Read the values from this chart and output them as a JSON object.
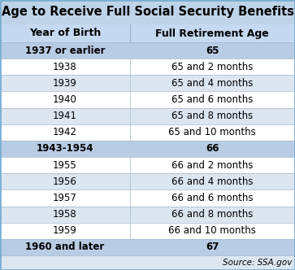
{
  "title": "Age to Receive Full Social Security Benefits",
  "col1_header": "Year of Birth",
  "col2_header": "Full Retirement Age",
  "rows": [
    [
      "1937 or earlier",
      "65"
    ],
    [
      "1938",
      "65 and 2 months"
    ],
    [
      "1939",
      "65 and 4 months"
    ],
    [
      "1940",
      "65 and 6 months"
    ],
    [
      "1941",
      "65 and 8 months"
    ],
    [
      "1942",
      "65 and 10 months"
    ],
    [
      "1943-1954",
      "66"
    ],
    [
      "1955",
      "66 and 2 months"
    ],
    [
      "1956",
      "66 and 4 months"
    ],
    [
      "1957",
      "66 and 6 months"
    ],
    [
      "1958",
      "66 and 8 months"
    ],
    [
      "1959",
      "66 and 10 months"
    ],
    [
      "1960 and later",
      "67"
    ]
  ],
  "source_text": "Source: SSA.gov",
  "title_fontsize": 10.5,
  "header_fontsize": 9,
  "cell_fontsize": 8.5,
  "source_fontsize": 7.5,
  "title_bg_color": "#bed3e8",
  "title_text_color": "#000000",
  "header_bg_color": "#c5d9f1",
  "header_text_color": "#000000",
  "row_colors": [
    "#dce6f1",
    "#ffffff"
  ],
  "milestone_rows": [
    0,
    6,
    12
  ],
  "milestone_bg_color": "#b8cce4",
  "outer_border_color": "#7bafd4",
  "divider_color": "#a0b8d0",
  "source_bg_color": "#dce6f1",
  "col_split": 0.44
}
